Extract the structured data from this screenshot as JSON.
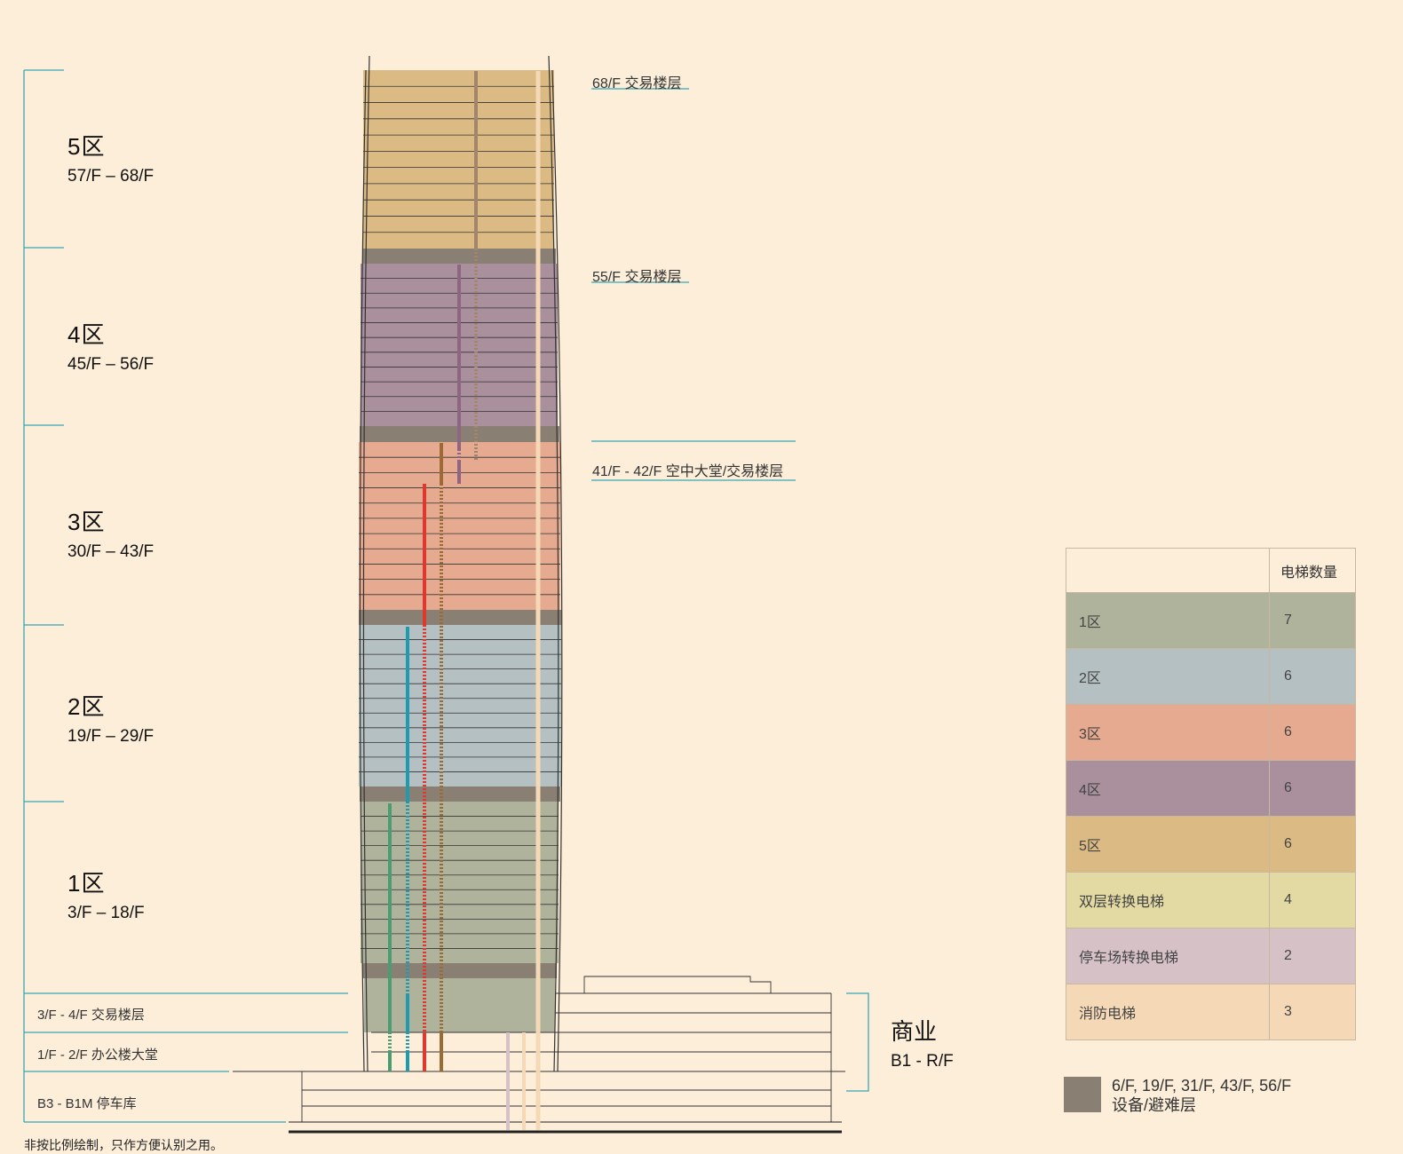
{
  "zones": [
    {
      "title": "5区",
      "range": "57/F – 68/F"
    },
    {
      "title": "4区",
      "range": "45/F – 56/F"
    },
    {
      "title": "3区",
      "range": "30/F – 43/F"
    },
    {
      "title": "2区",
      "range": "19/F – 29/F"
    },
    {
      "title": "1区",
      "range": "3/F – 18/F"
    }
  ],
  "lower_labels": {
    "trading": "3/F - 4/F 交易楼层",
    "lobby": "1/F - 2/F 办公楼大堂",
    "parking": "B3 - B1M 停车库"
  },
  "right_labels": {
    "f68": "68/F 交易楼层",
    "f55": "55/F 交易楼层",
    "f41": "41/F - 42/F 空中大堂/交易楼层"
  },
  "commercial": {
    "title": "商业",
    "range": "B1 - R/F"
  },
  "note": "非按比例绘制，只作方便认别之用。",
  "legend": {
    "header": "电梯数量",
    "rows": [
      {
        "label": "1区",
        "count": "7",
        "color": "#b0b39c"
      },
      {
        "label": "2区",
        "count": "6",
        "color": "#b5c0c3"
      },
      {
        "label": "3区",
        "count": "6",
        "color": "#e5aa90"
      },
      {
        "label": "4区",
        "count": "6",
        "color": "#a9909c"
      },
      {
        "label": "5区",
        "count": "6",
        "color": "#dbbb83"
      },
      {
        "label": "双层转换电梯",
        "count": "4",
        "color": "#e3d9a2"
      },
      {
        "label": "停车场转换电梯",
        "count": "2",
        "color": "#d5c1c6"
      },
      {
        "label": "消防电梯",
        "count": "3",
        "color": "#f5d9b6"
      }
    ],
    "mechanical": {
      "floors": "6/F, 19/F, 31/F, 43/F, 56/F",
      "label": "设备/避难层",
      "color": "#897f73"
    }
  },
  "colors": {
    "accent": "#3aa6b5",
    "zone1": "#b0b39c",
    "zone2": "#b5c0c3",
    "zone3": "#e5aa90",
    "zone4": "#a9909c",
    "zone5": "#dbbb83",
    "mechanical": "#897f73",
    "background": "#fdeed9"
  }
}
